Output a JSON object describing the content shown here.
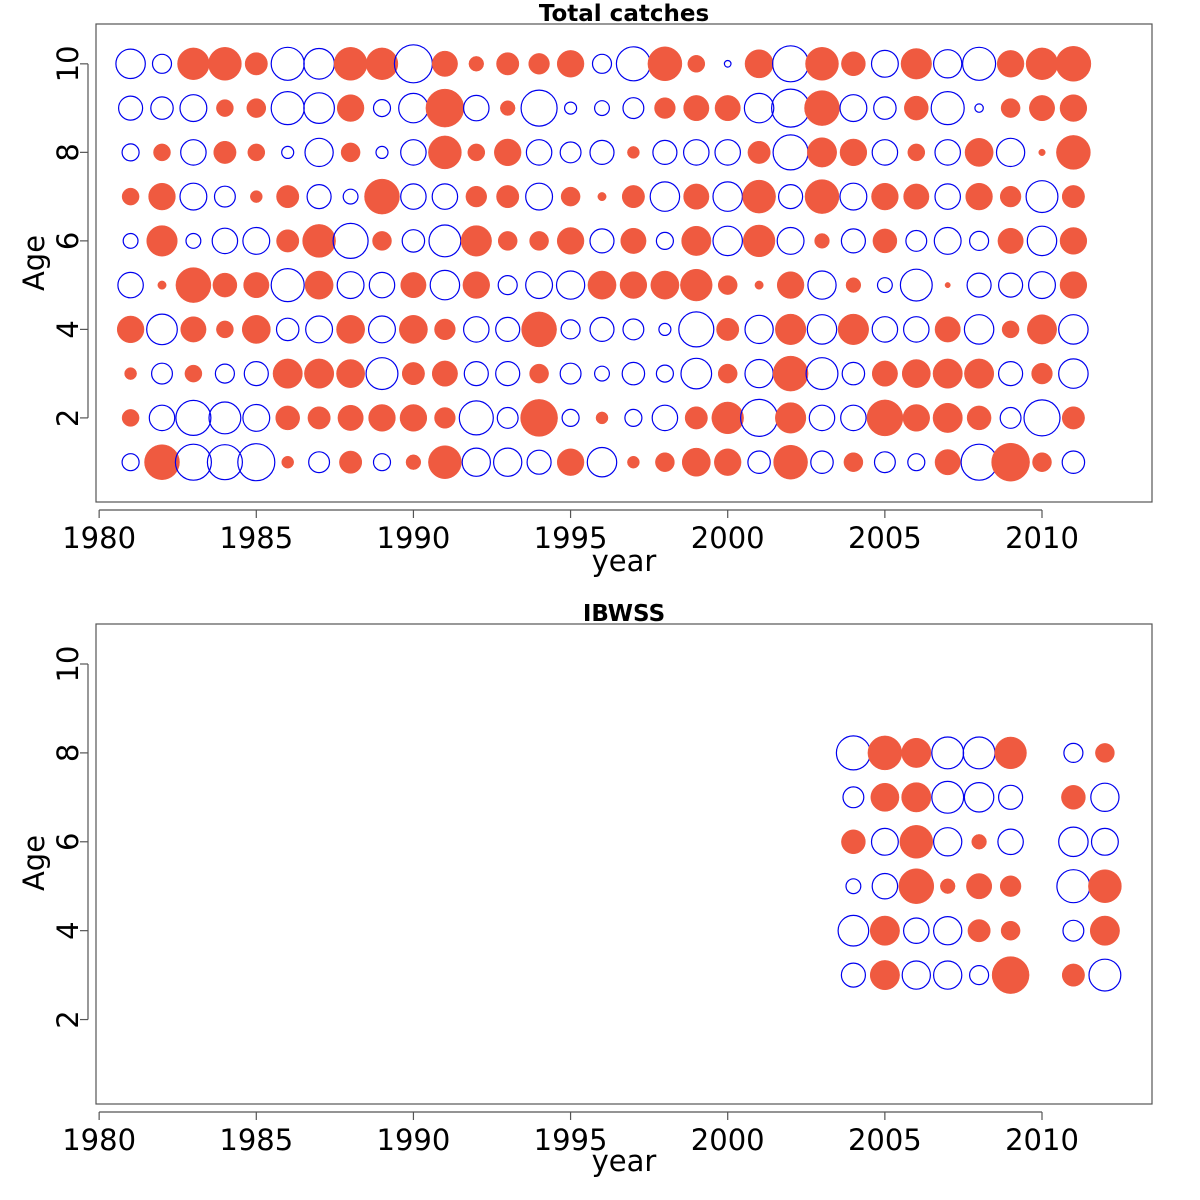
{
  "colors": {
    "positive": "#ef5a40",
    "negative": "#0000ee",
    "frame": "#555555"
  },
  "chart_data": [
    {
      "type": "bubble",
      "title": "Total catches",
      "xlabel": "year",
      "ylabel": "Age",
      "xlim": [
        1979.9,
        2013.5
      ],
      "ylim": [
        0.1,
        10.9
      ],
      "xticks": [
        1980,
        1985,
        1990,
        1995,
        2000,
        2005,
        2010
      ],
      "yticks": [
        2,
        4,
        6,
        8,
        10
      ],
      "legend": "none",
      "series_note_marker": "filled = positive residual, open = negative residual",
      "ages": [
        1,
        2,
        3,
        4,
        5,
        6,
        7,
        8,
        9,
        10
      ],
      "years": [
        1981,
        1982,
        1983,
        1984,
        1985,
        1986,
        1987,
        1988,
        1989,
        1990,
        1991,
        1992,
        1993,
        1994,
        1995,
        1996,
        1997,
        1998,
        1999,
        2000,
        2001,
        2002,
        2003,
        2004,
        2005,
        2006,
        2007,
        2008,
        2009,
        2010,
        2011
      ],
      "residuals": [
        [
          -0.2,
          0.85,
          -0.9,
          -0.85,
          -0.95,
          0.1,
          -0.3,
          0.35,
          -0.2,
          0.15,
          0.75,
          -0.55,
          -0.55,
          -0.4,
          0.5,
          -0.6,
          0.1,
          0.25,
          0.55,
          0.5,
          -0.35,
          0.8,
          -0.35,
          0.25,
          -0.3,
          -0.2,
          0.45,
          -0.9,
          1.0,
          0.25,
          -0.35
        ],
        [
          0.2,
          -0.45,
          -0.85,
          -0.7,
          -0.5,
          0.4,
          0.35,
          0.45,
          0.5,
          0.5,
          0.3,
          -0.8,
          -0.3,
          0.95,
          -0.2,
          0.1,
          -0.2,
          -0.45,
          0.35,
          0.7,
          -0.95,
          0.65,
          -0.45,
          -0.45,
          0.9,
          0.5,
          0.6,
          0.4,
          -0.3,
          -0.9,
          0.35
        ],
        [
          0.1,
          -0.3,
          0.2,
          -0.25,
          -0.4,
          0.6,
          0.6,
          0.55,
          -0.7,
          0.35,
          0.45,
          -0.4,
          -0.4,
          0.25,
          -0.3,
          -0.15,
          -0.35,
          -0.2,
          -0.65,
          0.25,
          -0.55,
          0.85,
          -0.7,
          -0.35,
          0.45,
          0.55,
          0.6,
          0.6,
          -0.4,
          0.3,
          -0.6
        ],
        [
          0.5,
          -0.65,
          0.45,
          0.2,
          0.55,
          -0.35,
          -0.5,
          0.55,
          -0.5,
          0.55,
          0.3,
          -0.45,
          -0.4,
          0.85,
          -0.25,
          -0.4,
          -0.3,
          -0.1,
          -0.85,
          0.35,
          -0.55,
          0.65,
          -0.6,
          0.65,
          -0.45,
          -0.45,
          0.45,
          -0.6,
          0.2,
          0.6,
          -0.6
        ],
        [
          -0.45,
          0.05,
          0.85,
          0.4,
          0.45,
          -0.75,
          0.55,
          -0.5,
          -0.45,
          0.45,
          -0.6,
          0.5,
          -0.25,
          -0.5,
          -0.55,
          0.55,
          0.5,
          0.55,
          0.7,
          0.25,
          0.05,
          0.5,
          -0.55,
          0.15,
          -0.15,
          -0.7,
          0.02,
          -0.4,
          -0.4,
          -0.5,
          0.5
        ],
        [
          -0.15,
          0.65,
          -0.15,
          -0.45,
          -0.5,
          0.35,
          0.75,
          -0.85,
          0.25,
          -0.35,
          -0.7,
          0.65,
          0.25,
          0.25,
          0.5,
          -0.4,
          0.45,
          -0.2,
          0.6,
          -0.6,
          0.7,
          -0.5,
          0.15,
          -0.4,
          0.4,
          -0.3,
          -0.5,
          -0.25,
          0.45,
          -0.6,
          0.5
        ],
        [
          0.2,
          0.5,
          -0.5,
          -0.3,
          0.1,
          0.35,
          -0.4,
          -0.15,
          0.85,
          -0.45,
          -0.45,
          0.3,
          0.35,
          -0.5,
          0.25,
          0.05,
          0.35,
          -0.6,
          0.45,
          -0.6,
          0.75,
          -0.4,
          0.8,
          -0.5,
          0.5,
          0.45,
          -0.45,
          0.5,
          0.3,
          -0.7,
          0.35
        ],
        [
          -0.2,
          0.2,
          -0.45,
          0.35,
          0.2,
          -0.1,
          -0.55,
          0.25,
          -0.1,
          -0.45,
          0.75,
          0.2,
          0.5,
          -0.45,
          -0.3,
          -0.4,
          0.1,
          -0.4,
          -0.45,
          -0.45,
          0.35,
          -0.85,
          0.6,
          0.5,
          -0.45,
          0.2,
          -0.45,
          0.55,
          -0.55,
          0.03,
          0.8
        ],
        [
          -0.4,
          -0.35,
          -0.5,
          0.2,
          0.25,
          -0.75,
          -0.65,
          0.5,
          -0.2,
          -0.6,
          1.0,
          -0.45,
          0.15,
          -0.9,
          -0.1,
          -0.15,
          -0.3,
          0.3,
          0.45,
          0.45,
          -0.6,
          -1.0,
          0.85,
          -0.5,
          -0.35,
          0.4,
          -0.75,
          -0.05,
          0.25,
          0.45,
          0.5
        ],
        [
          -0.6,
          -0.25,
          0.7,
          0.75,
          0.35,
          -0.75,
          -0.65,
          0.75,
          0.7,
          -1.0,
          0.45,
          0.15,
          0.35,
          0.3,
          0.5,
          -0.25,
          -0.8,
          0.8,
          0.2,
          -0.03,
          0.55,
          -0.9,
          0.75,
          0.4,
          -0.5,
          0.65,
          -0.55,
          -0.75,
          0.5,
          0.7,
          0.85
        ]
      ]
    },
    {
      "type": "bubble",
      "title": "IBWSS",
      "xlabel": "year",
      "ylabel": "Age",
      "xlim": [
        1979.9,
        2013.5
      ],
      "ylim": [
        0.1,
        10.9
      ],
      "xticks": [
        1980,
        1985,
        1990,
        1995,
        2000,
        2005,
        2010
      ],
      "yticks": [
        2,
        4,
        6,
        8,
        10
      ],
      "legend": "none",
      "ages": [
        3,
        4,
        5,
        6,
        7,
        8
      ],
      "years": [
        2004,
        2005,
        2006,
        2007,
        2008,
        2009,
        2011,
        2012
      ],
      "residuals": [
        [
          -0.4,
          0.6,
          -0.55,
          -0.55,
          -0.25,
          0.95,
          0.35,
          -0.7
        ],
        [
          -0.65,
          0.6,
          -0.45,
          -0.55,
          0.35,
          0.25,
          -0.3,
          0.6
        ],
        [
          -0.15,
          -0.45,
          0.85,
          0.15,
          0.45,
          0.3,
          -0.75,
          0.75
        ],
        [
          0.4,
          -0.5,
          0.75,
          -0.55,
          0.15,
          -0.45,
          -0.6,
          -0.5
        ],
        [
          -0.3,
          0.55,
          0.6,
          -0.7,
          -0.6,
          -0.4,
          0.4,
          -0.55
        ],
        [
          -0.8,
          0.8,
          0.6,
          -0.7,
          -0.7,
          0.7,
          -0.25,
          0.25
        ]
      ]
    }
  ]
}
